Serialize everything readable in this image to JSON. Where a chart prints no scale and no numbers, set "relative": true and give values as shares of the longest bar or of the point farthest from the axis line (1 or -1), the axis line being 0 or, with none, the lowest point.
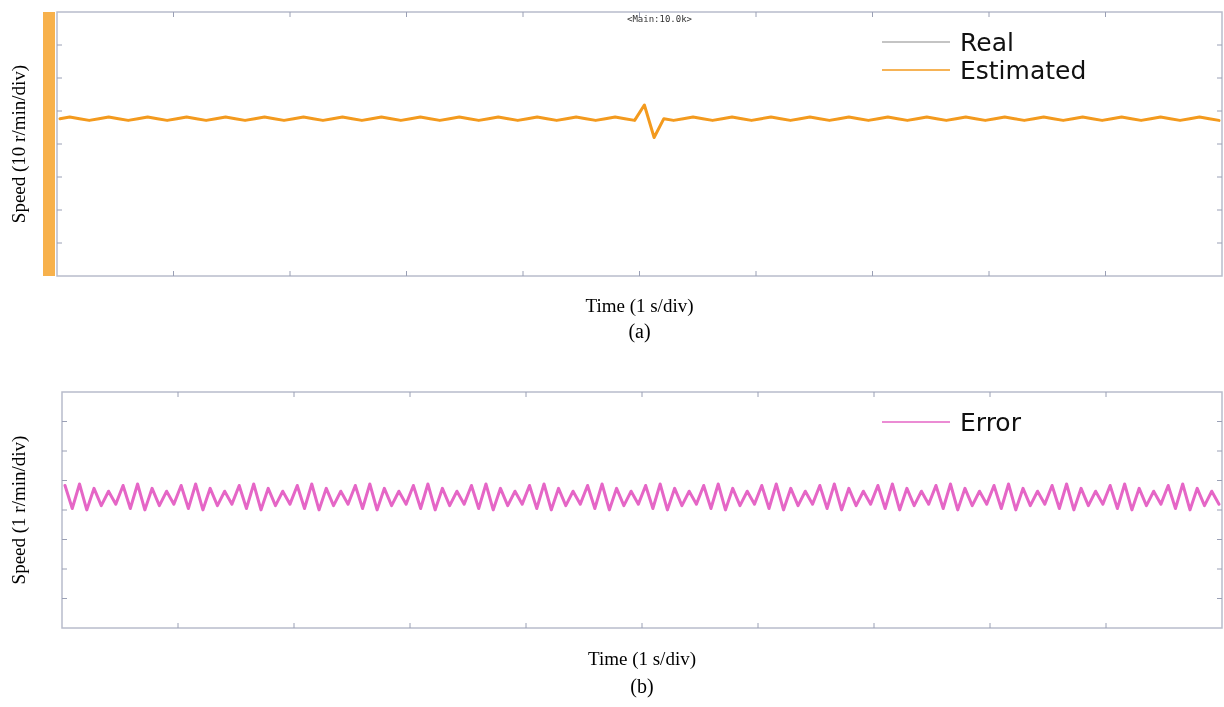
{
  "chart_data": [
    {
      "type": "line",
      "title": "(a)",
      "xlabel": "Time (1 s/div)",
      "ylabel": "Speed (10 r/min/div)",
      "annotations": [
        "<Main:10.0k>"
      ],
      "relative": true,
      "legend": "top right",
      "marker": "none",
      "line_style": "solid",
      "categories": [
        null,
        null,
        null,
        null,
        null,
        null,
        null,
        null,
        null,
        null,
        null,
        null,
        null,
        null,
        null,
        null,
        null,
        null,
        null,
        null,
        null,
        null,
        null,
        null,
        null,
        null,
        null,
        null,
        null,
        null,
        null,
        null,
        null,
        null,
        null,
        null,
        null,
        null,
        null,
        null,
        null,
        null,
        null,
        null,
        null,
        null,
        null,
        null,
        null,
        null,
        null,
        null,
        null,
        null,
        null,
        null,
        null,
        null,
        null,
        null,
        null,
        null,
        null,
        null,
        null,
        null,
        null,
        null,
        null,
        null,
        null,
        null,
        null,
        null,
        null,
        null,
        null,
        null,
        null,
        null,
        null,
        null,
        null,
        null,
        null,
        null,
        null,
        null,
        null,
        null,
        null,
        null,
        null,
        null,
        null,
        null,
        null,
        null,
        null,
        null,
        null,
        null,
        null,
        null,
        null,
        null,
        null,
        null,
        null,
        null,
        null,
        null,
        null,
        null,
        null,
        null,
        null,
        null,
        null,
        null
      ],
      "series": [
        {
          "name": "Real",
          "color": "#b0b0b0",
          "values": [
            null,
            null,
            null,
            null,
            null,
            null,
            null,
            null,
            null,
            null,
            null,
            null,
            null,
            null,
            null,
            null,
            null,
            null,
            null,
            null,
            null,
            null,
            null,
            null,
            null,
            null,
            null,
            null,
            null,
            null,
            null,
            null,
            null,
            null,
            null,
            null,
            null,
            null,
            null,
            null,
            null,
            null,
            null,
            null,
            null,
            null,
            null,
            null,
            null,
            null,
            null,
            null,
            null,
            null,
            null,
            null,
            null,
            null,
            null,
            null,
            null,
            null,
            null,
            null,
            null,
            null,
            null,
            null,
            null,
            null,
            null,
            null,
            null,
            null,
            null,
            null,
            null,
            null,
            null,
            null,
            null,
            null,
            null,
            null,
            null,
            null,
            null,
            null,
            null,
            null,
            null,
            null,
            null,
            null,
            null,
            null,
            null,
            null,
            null,
            null,
            null,
            null,
            null,
            null,
            null,
            null,
            null,
            null,
            null,
            null,
            null,
            null,
            null,
            null,
            null,
            null,
            null,
            null,
            null,
            null
          ]
        },
        {
          "name": "Estimated",
          "color": "#f39a1e",
          "values": [
            0.92,
            0.93,
            0.92,
            0.91,
            0.92,
            0.93,
            0.92,
            0.91,
            0.92,
            0.93,
            0.92,
            0.91,
            0.92,
            0.93,
            0.92,
            0.91,
            0.92,
            0.93,
            0.92,
            0.91,
            0.92,
            0.93,
            0.92,
            0.91,
            0.92,
            0.93,
            0.92,
            0.91,
            0.92,
            0.93,
            0.92,
            0.91,
            0.92,
            0.93,
            0.92,
            0.91,
            0.92,
            0.93,
            0.92,
            0.91,
            0.92,
            0.93,
            0.92,
            0.91,
            0.92,
            0.93,
            0.92,
            0.91,
            0.92,
            0.93,
            0.92,
            0.91,
            0.92,
            0.93,
            0.92,
            0.91,
            0.92,
            0.93,
            0.92,
            0.91,
            1.0,
            0.81,
            0.92,
            0.91,
            0.92,
            0.93,
            0.92,
            0.91,
            0.92,
            0.93,
            0.92,
            0.91,
            0.92,
            0.93,
            0.92,
            0.91,
            0.92,
            0.93,
            0.92,
            0.91,
            0.92,
            0.93,
            0.92,
            0.91,
            0.92,
            0.93,
            0.92,
            0.91,
            0.92,
            0.93,
            0.92,
            0.91,
            0.92,
            0.93,
            0.92,
            0.91,
            0.92,
            0.93,
            0.92,
            0.91,
            0.92,
            0.93,
            0.92,
            0.91,
            0.92,
            0.93,
            0.92,
            0.91,
            0.92,
            0.93,
            0.92,
            0.91,
            0.92,
            0.93,
            0.92,
            0.91,
            0.92,
            0.93,
            0.92,
            0.91
          ]
        }
      ]
    },
    {
      "type": "line",
      "title": "(b)",
      "xlabel": "Time (1 s/div)",
      "ylabel": "Speed (1 r/min/div)",
      "relative": true,
      "legend": "top right",
      "marker": "none",
      "line_style": "solid",
      "categories": [
        null,
        null,
        null,
        null,
        null,
        null,
        null,
        null,
        null,
        null,
        null,
        null,
        null,
        null,
        null,
        null,
        null,
        null,
        null,
        null,
        null,
        null,
        null,
        null,
        null,
        null,
        null,
        null,
        null,
        null,
        null,
        null,
        null,
        null,
        null,
        null,
        null,
        null,
        null,
        null,
        null,
        null,
        null,
        null,
        null,
        null,
        null,
        null,
        null,
        null,
        null,
        null,
        null,
        null,
        null,
        null,
        null,
        null,
        null,
        null,
        null,
        null,
        null,
        null,
        null,
        null,
        null,
        null,
        null,
        null,
        null,
        null,
        null,
        null,
        null,
        null,
        null,
        null,
        null,
        null,
        null,
        null,
        null,
        null,
        null,
        null,
        null,
        null,
        null,
        null,
        null,
        null,
        null,
        null,
        null,
        null,
        null,
        null,
        null,
        null,
        null,
        null,
        null,
        null,
        null,
        null,
        null,
        null,
        null,
        null,
        null,
        null,
        null,
        null,
        null,
        null,
        null,
        null,
        null,
        null,
        null,
        null,
        null,
        null,
        null,
        null,
        null,
        null,
        null,
        null,
        null,
        null,
        null,
        null,
        null,
        null,
        null,
        null,
        null,
        null,
        null,
        null,
        null,
        null,
        null,
        null,
        null,
        null,
        null,
        null,
        null,
        null,
        null,
        null,
        null,
        null,
        null,
        null,
        null,
        null
      ],
      "series": [
        {
          "name": "Error",
          "color": "#e566c6",
          "values": [
            0.99,
            0.83,
            1.0,
            0.82,
            0.97,
            0.85,
            0.95,
            0.86,
            0.99,
            0.83,
            1.0,
            0.82,
            0.97,
            0.85,
            0.95,
            0.86,
            0.99,
            0.83,
            1.0,
            0.82,
            0.97,
            0.85,
            0.95,
            0.86,
            0.99,
            0.83,
            1.0,
            0.82,
            0.97,
            0.85,
            0.95,
            0.86,
            0.99,
            0.83,
            1.0,
            0.82,
            0.97,
            0.85,
            0.95,
            0.86,
            0.99,
            0.83,
            1.0,
            0.82,
            0.97,
            0.85,
            0.95,
            0.86,
            0.99,
            0.83,
            1.0,
            0.82,
            0.97,
            0.85,
            0.95,
            0.86,
            0.99,
            0.83,
            1.0,
            0.82,
            0.97,
            0.85,
            0.95,
            0.86,
            0.99,
            0.83,
            1.0,
            0.82,
            0.97,
            0.85,
            0.95,
            0.86,
            0.99,
            0.83,
            1.0,
            0.82,
            0.97,
            0.85,
            0.95,
            0.86,
            0.99,
            0.83,
            1.0,
            0.82,
            0.97,
            0.85,
            0.95,
            0.86,
            0.99,
            0.83,
            1.0,
            0.82,
            0.97,
            0.85,
            0.95,
            0.86,
            0.99,
            0.83,
            1.0,
            0.82,
            0.97,
            0.85,
            0.95,
            0.86,
            0.99,
            0.83,
            1.0,
            0.82,
            0.97,
            0.85,
            0.95,
            0.86,
            0.99,
            0.83,
            1.0,
            0.82,
            0.97,
            0.85,
            0.95,
            0.86,
            0.99,
            0.83,
            1.0,
            0.82,
            0.97,
            0.85,
            0.95,
            0.86,
            0.99,
            0.83,
            1.0,
            0.82,
            0.97,
            0.85,
            0.95,
            0.86,
            0.99,
            0.83,
            1.0,
            0.82,
            0.97,
            0.85,
            0.95,
            0.86,
            0.99,
            0.83,
            1.0,
            0.82,
            0.97,
            0.85,
            0.95,
            0.86,
            0.99,
            0.83,
            1.0,
            0.82,
            0.97,
            0.85,
            0.95,
            0.86
          ]
        }
      ]
    }
  ]
}
